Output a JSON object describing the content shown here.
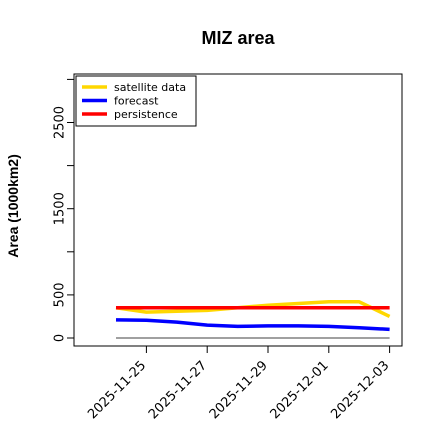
{
  "chart_data": {
    "type": "line",
    "title": "MIZ area",
    "xlabel": "",
    "ylabel": "Area (1000km2)",
    "ylim": [
      -40,
      3100
    ],
    "x": [
      "2025-11-24",
      "2025-11-25",
      "2025-11-26",
      "2025-11-27",
      "2025-11-28",
      "2025-11-29",
      "2025-11-30",
      "2025-12-01",
      "2025-12-02",
      "2025-12-03"
    ],
    "x_tick_labels": [
      "2025-11-25",
      "2025-11-27",
      "2025-11-29",
      "2025-12-01",
      "2025-12-03"
    ],
    "x_tick_colors": [
      "#228b22",
      "#000000",
      "#000000",
      "#000000",
      "#000000"
    ],
    "y_ticks": [
      0,
      500,
      1500,
      2500
    ],
    "y_tick_labels": [
      "0",
      "500",
      "1500",
      "2500"
    ],
    "y_minor_ticks": [
      1000,
      2000,
      3000
    ],
    "series": [
      {
        "name": "satellite data",
        "color": "#ffd700",
        "values": [
          350,
          300,
          310,
          320,
          350,
          380,
          400,
          420,
          420,
          250
        ]
      },
      {
        "name": "forecast",
        "color": "#0000ff",
        "values": [
          210,
          205,
          185,
          150,
          135,
          140,
          140,
          135,
          120,
          100
        ]
      },
      {
        "name": "persistence",
        "color": "#ff0000",
        "values": [
          350,
          350,
          350,
          350,
          350,
          350,
          350,
          350,
          350,
          350
        ]
      }
    ],
    "baseline": {
      "value": 0,
      "color": "#808080"
    },
    "legend_position": "top-left",
    "grid": false
  }
}
